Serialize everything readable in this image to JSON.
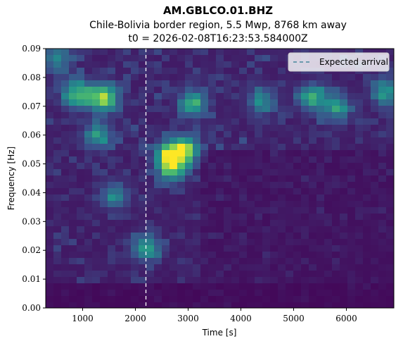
{
  "chart_data": {
    "type": "heatmap",
    "title": "AM.GBLCO.01.BHZ",
    "subtitle_lines": [
      "Chile-Bolivia border region, 5.5 Mwp, 8768 km away",
      "t0 = 2026-02-08T16:23:53.584000Z"
    ],
    "xlabel": "Time [s]",
    "ylabel": "Frequency [Hz]",
    "xlim": [
      300,
      6900
    ],
    "ylim": [
      0.0,
      0.09
    ],
    "xticks": [
      1000,
      2000,
      3000,
      4000,
      5000,
      6000
    ],
    "yticks": [
      "0.00",
      "0.01",
      "0.02",
      "0.03",
      "0.04",
      "0.05",
      "0.06",
      "0.07",
      "0.08",
      "0.09"
    ],
    "colormap": "viridis",
    "grid": false,
    "legend_position": "top-right",
    "legend_entries": [
      "Expected arrival"
    ],
    "expected_arrival_s": 2200,
    "expected_arrival_color": "#ffffff",
    "hotspots": [
      {
        "t": 1400,
        "f": 0.073,
        "level": 0.95
      },
      {
        "t": 900,
        "f": 0.074,
        "level": 0.75
      },
      {
        "t": 2650,
        "f": 0.053,
        "level": 1.0
      },
      {
        "t": 2950,
        "f": 0.055,
        "level": 0.8
      },
      {
        "t": 2700,
        "f": 0.048,
        "level": 0.65
      },
      {
        "t": 3100,
        "f": 0.071,
        "level": 0.6
      },
      {
        "t": 5350,
        "f": 0.073,
        "level": 0.6
      },
      {
        "t": 5800,
        "f": 0.07,
        "level": 0.55
      },
      {
        "t": 6750,
        "f": 0.075,
        "level": 0.55
      },
      {
        "t": 2200,
        "f": 0.021,
        "level": 0.6
      },
      {
        "t": 1300,
        "f": 0.06,
        "level": 0.5
      },
      {
        "t": 1600,
        "f": 0.039,
        "level": 0.45
      },
      {
        "t": 500,
        "f": 0.087,
        "level": 0.45
      },
      {
        "t": 4400,
        "f": 0.072,
        "level": 0.45
      }
    ]
  }
}
